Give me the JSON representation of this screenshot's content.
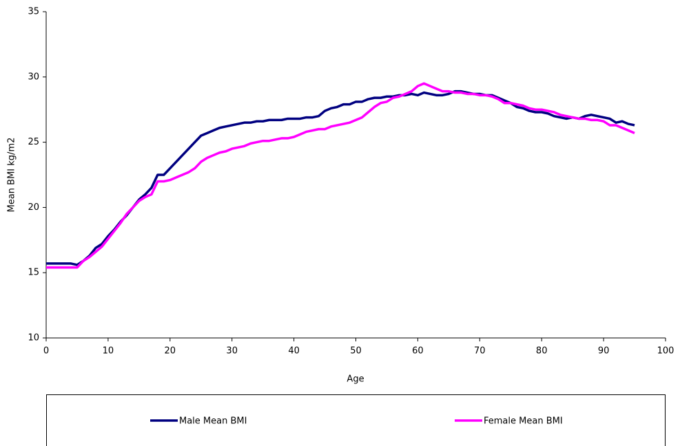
{
  "chart_data": {
    "type": "line",
    "x_label": "Age",
    "y_label": "Mean BMI kg/m2",
    "x": [
      0,
      1,
      2,
      3,
      4,
      5,
      6,
      7,
      8,
      9,
      10,
      11,
      12,
      13,
      14,
      15,
      16,
      17,
      18,
      19,
      20,
      21,
      22,
      23,
      24,
      25,
      26,
      27,
      28,
      29,
      30,
      31,
      32,
      33,
      34,
      35,
      36,
      37,
      38,
      39,
      40,
      41,
      42,
      43,
      44,
      45,
      46,
      47,
      48,
      49,
      50,
      51,
      52,
      53,
      54,
      55,
      56,
      57,
      58,
      59,
      60,
      61,
      62,
      63,
      64,
      65,
      66,
      67,
      68,
      69,
      70,
      71,
      72,
      73,
      74,
      75,
      76,
      77,
      78,
      79,
      80,
      81,
      82,
      83,
      84,
      85,
      86,
      87,
      88,
      89,
      90,
      91,
      92,
      93,
      94,
      95
    ],
    "series": [
      {
        "name": "Male Mean BMI",
        "color": "#000080",
        "values": [
          15.7,
          15.7,
          15.7,
          15.7,
          15.7,
          15.6,
          15.9,
          16.3,
          16.9,
          17.2,
          17.8,
          18.3,
          18.9,
          19.4,
          20.0,
          20.6,
          21.0,
          21.5,
          22.5,
          22.5,
          23.0,
          23.5,
          24.0,
          24.5,
          25.0,
          25.5,
          25.7,
          25.9,
          26.1,
          26.2,
          26.3,
          26.4,
          26.5,
          26.5,
          26.6,
          26.6,
          26.7,
          26.7,
          26.7,
          26.8,
          26.8,
          26.8,
          26.9,
          26.9,
          27.0,
          27.4,
          27.6,
          27.7,
          27.9,
          27.9,
          28.1,
          28.1,
          28.3,
          28.4,
          28.4,
          28.5,
          28.5,
          28.6,
          28.6,
          28.7,
          28.6,
          28.8,
          28.7,
          28.6,
          28.6,
          28.7,
          28.9,
          28.9,
          28.8,
          28.7,
          28.7,
          28.6,
          28.6,
          28.4,
          28.2,
          28.0,
          27.7,
          27.6,
          27.4,
          27.3,
          27.3,
          27.2,
          27.0,
          26.9,
          26.8,
          26.9,
          26.8,
          27.0,
          27.1,
          27.0,
          26.9,
          26.8,
          26.5,
          26.6,
          26.4,
          26.3
        ]
      },
      {
        "name": "Female Mean BMI",
        "color": "#ff00ff",
        "values": [
          15.4,
          15.4,
          15.4,
          15.4,
          15.4,
          15.4,
          15.9,
          16.2,
          16.6,
          17.0,
          17.6,
          18.2,
          18.8,
          19.5,
          20.0,
          20.5,
          20.8,
          21.0,
          22.0,
          22.0,
          22.1,
          22.3,
          22.5,
          22.7,
          23.0,
          23.5,
          23.8,
          24.0,
          24.2,
          24.3,
          24.5,
          24.6,
          24.7,
          24.9,
          25.0,
          25.1,
          25.1,
          25.2,
          25.3,
          25.3,
          25.4,
          25.6,
          25.8,
          25.9,
          26.0,
          26.0,
          26.2,
          26.3,
          26.4,
          26.5,
          26.7,
          26.9,
          27.3,
          27.7,
          28.0,
          28.1,
          28.4,
          28.5,
          28.7,
          28.9,
          29.3,
          29.5,
          29.3,
          29.1,
          28.9,
          28.9,
          28.8,
          28.8,
          28.7,
          28.7,
          28.6,
          28.6,
          28.5,
          28.3,
          28.0,
          28.0,
          27.9,
          27.8,
          27.6,
          27.5,
          27.5,
          27.4,
          27.3,
          27.1,
          27.0,
          26.9,
          26.8,
          26.8,
          26.7,
          26.7,
          26.6,
          26.3,
          26.3,
          26.1,
          25.9,
          25.7
        ]
      }
    ],
    "xlim": [
      0,
      100
    ],
    "xticks": [
      0,
      10,
      20,
      30,
      40,
      50,
      60,
      70,
      80,
      90,
      100
    ],
    "ylim": [
      10,
      35
    ],
    "yticks": [
      10,
      15,
      20,
      25,
      30,
      35
    ],
    "legend": "bottom"
  }
}
